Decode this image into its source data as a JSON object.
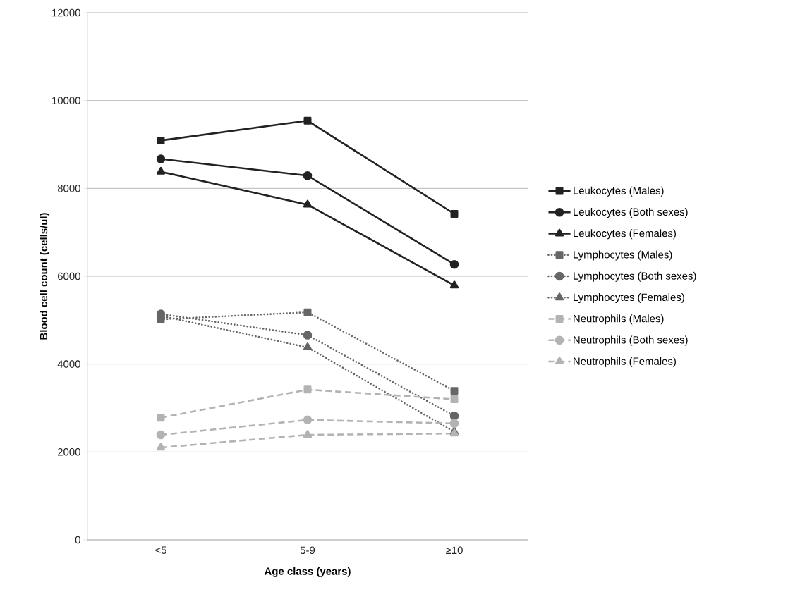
{
  "chart_data": {
    "type": "line",
    "xlabel": "Age class (years)",
    "ylabel": "Blood cell count (cells/ul)",
    "categories": [
      "<5",
      "5-9",
      "≥10"
    ],
    "ylim": [
      0,
      12000
    ],
    "yticks": [
      0,
      2000,
      4000,
      6000,
      8000,
      10000,
      12000
    ],
    "grid": "y",
    "legend": "right",
    "series": [
      {
        "name": "Leukocytes (Males)",
        "color": "#222222",
        "marker": "square",
        "line_style": "solid",
        "values": [
          9090,
          9540,
          7420
        ]
      },
      {
        "name": "Leukocytes (Both sexes)",
        "color": "#222222",
        "marker": "circle",
        "line_style": "solid",
        "values": [
          8670,
          8290,
          6270
        ]
      },
      {
        "name": "Leukocytes (Females)",
        "color": "#222222",
        "marker": "triangle",
        "line_style": "solid",
        "values": [
          8380,
          7630,
          5790
        ]
      },
      {
        "name": "Lymphocytes (Males)",
        "color": "#666666",
        "marker": "square",
        "line_style": "dotted",
        "values": [
          5020,
          5180,
          3390
        ]
      },
      {
        "name": "Lymphocytes (Both sexes)",
        "color": "#666666",
        "marker": "circle",
        "line_style": "dotted",
        "values": [
          5140,
          4660,
          2820
        ]
      },
      {
        "name": "Lymphocytes (Females)",
        "color": "#666666",
        "marker": "triangle",
        "line_style": "dotted",
        "values": [
          5100,
          4380,
          2460
        ]
      },
      {
        "name": "Neutrophils (Males)",
        "color": "#b3b3b3",
        "marker": "square",
        "line_style": "dashed",
        "values": [
          2780,
          3420,
          3200
        ]
      },
      {
        "name": "Neutrophils (Both sexes)",
        "color": "#b3b3b3",
        "marker": "circle",
        "line_style": "dashed",
        "values": [
          2390,
          2730,
          2650
        ]
      },
      {
        "name": "Neutrophils (Females)",
        "color": "#b3b3b3",
        "marker": "triangle",
        "line_style": "dashed",
        "values": [
          2100,
          2390,
          2420
        ]
      }
    ]
  }
}
